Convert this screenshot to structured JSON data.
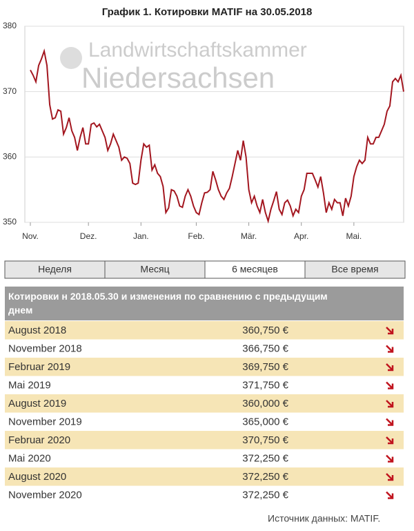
{
  "chart_data": {
    "type": "line",
    "title": "График 1. Котировки MATIF на 30.05.2018",
    "watermark": [
      "Landwirtschaftskammer",
      "Niedersachsen"
    ],
    "color": "#a3161f",
    "grid": true,
    "ylim": [
      350,
      380
    ],
    "yticks": [
      350,
      360,
      370,
      380
    ],
    "xlim": [
      0,
      135
    ],
    "xticks": [
      {
        "value": 0,
        "label": "Nov."
      },
      {
        "value": 21,
        "label": "Dez."
      },
      {
        "value": 40,
        "label": "Jan."
      },
      {
        "value": 60,
        "label": "Feb."
      },
      {
        "value": 79,
        "label": "Mär."
      },
      {
        "value": 98,
        "label": "Apr."
      },
      {
        "value": 117,
        "label": "Mai."
      }
    ],
    "values": [
      373.3,
      372.5,
      371.5,
      374,
      375,
      376.2,
      374,
      368,
      365.8,
      366,
      367.2,
      367,
      363.5,
      364.5,
      366,
      364,
      363,
      361,
      363,
      364.5,
      362,
      362,
      365,
      365.2,
      364.6,
      365,
      364,
      363,
      361,
      362,
      363.5,
      362.5,
      361.5,
      359.5,
      360,
      359.8,
      359,
      356,
      355.8,
      356,
      359.5,
      362,
      361.5,
      361.8,
      358,
      358.8,
      357.5,
      357,
      355.5,
      351.5,
      352.2,
      355,
      354.8,
      354,
      352.5,
      352.3,
      354,
      355,
      354,
      352.5,
      351.5,
      351.2,
      353,
      354.5,
      354.6,
      355,
      357.8,
      356.5,
      355,
      354,
      353.5,
      354.5,
      355.2,
      357,
      359,
      361,
      359.5,
      362.5,
      360,
      355,
      353,
      354,
      352.5,
      351.5,
      353.5,
      351.5,
      350.2,
      352,
      353.3,
      354.7,
      352,
      351.2,
      353,
      353.4,
      352.5,
      351,
      352,
      351.5,
      354,
      355,
      357.5,
      357.5,
      357.5,
      356.5,
      355.4,
      357,
      354.5,
      351.5,
      353,
      352,
      353.5,
      353,
      353,
      351,
      353.7,
      352.5,
      354,
      357,
      358.5,
      359.5,
      359,
      359.5,
      363,
      362,
      362,
      363,
      363,
      364,
      365,
      367,
      367.8,
      371.5,
      372,
      371.5,
      372.5,
      370
    ]
  },
  "tabs": {
    "items": [
      "Неделя",
      "Месяц",
      "6 месяцев",
      "Все время"
    ],
    "active": 2
  },
  "table": {
    "header": "Котировки н 2018.05.30 и изменения по сравнению с предыдущим днем",
    "rows": [
      [
        "August 2018",
        "360,750 €"
      ],
      [
        "November 2018",
        "366,750 €"
      ],
      [
        "Februar 2019",
        "369,750 €"
      ],
      [
        "Mai 2019",
        "371,750 €"
      ],
      [
        "August 2019",
        "360,000 €"
      ],
      [
        "November 2019",
        "365,000 €"
      ],
      [
        "Februar 2020",
        "370,750 €"
      ],
      [
        "Mai 2020",
        "372,250 €"
      ],
      [
        "August 2020",
        "372,250 €"
      ],
      [
        "November 2020",
        "372,250 €"
      ]
    ]
  },
  "source": "Источник данных: MATIF."
}
